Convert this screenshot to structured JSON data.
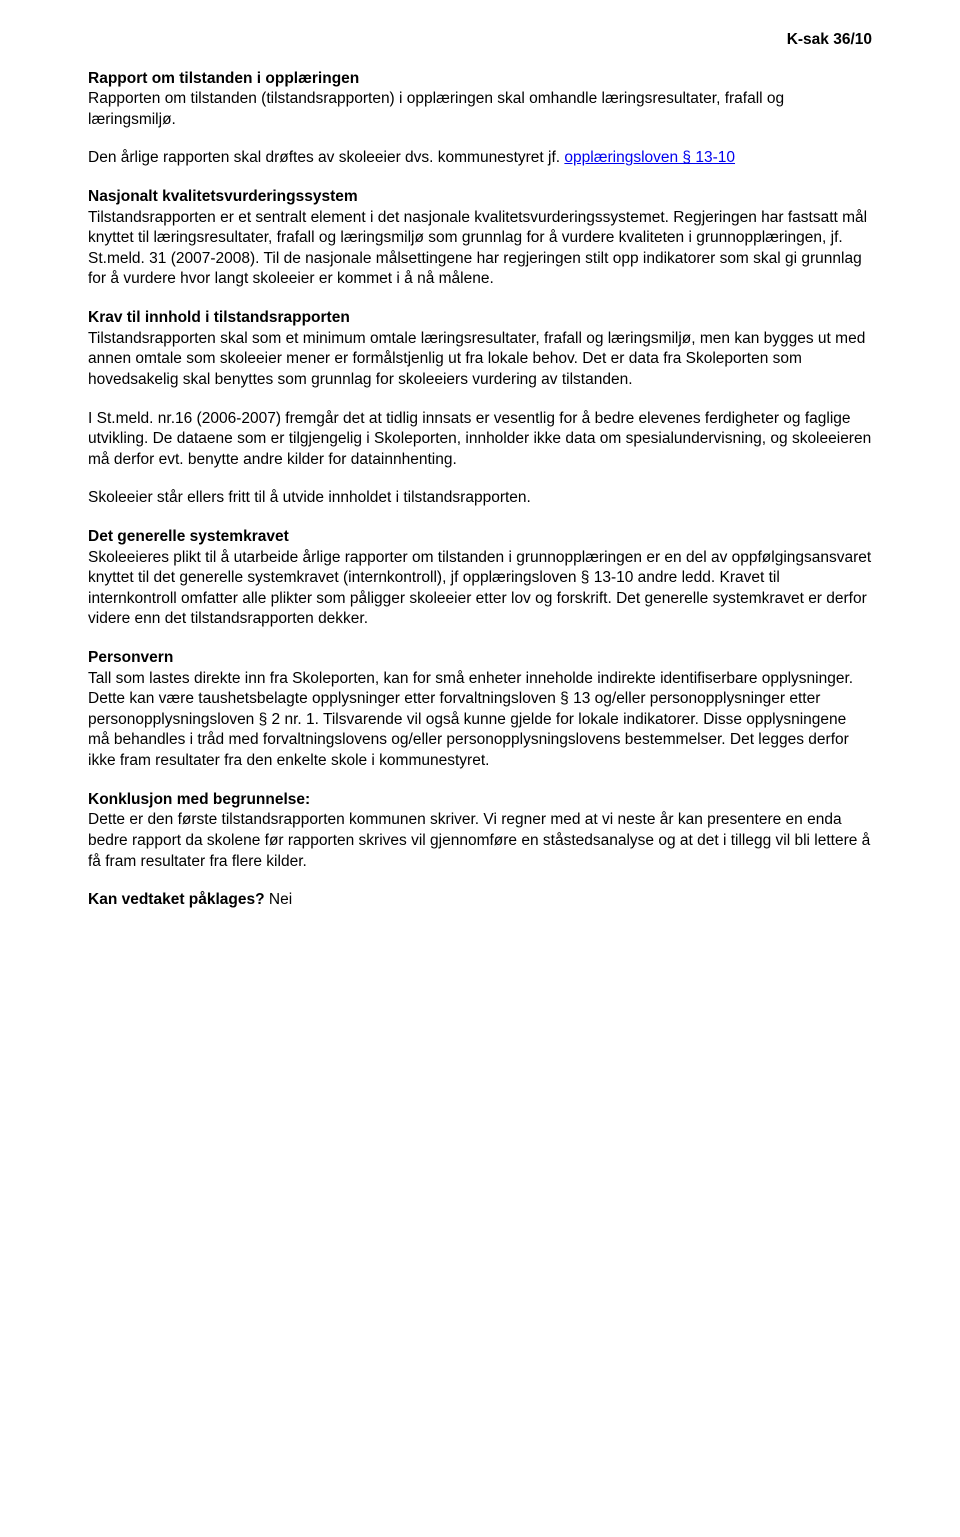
{
  "header": {
    "case_ref": "K-sak 36/10"
  },
  "s1": {
    "title": "Rapport om tilstanden i opplæringen",
    "p1": "Rapporten om tilstanden (tilstandsrapporten) i opplæringen skal omhandle læringsresultater, frafall og læringsmiljø.",
    "p2a": "Den årlige rapporten skal drøftes av skoleeier dvs. kommunestyret  jf. ",
    "p2link": "opplæringsloven § 13-10"
  },
  "s2": {
    "title": "Nasjonalt kvalitetsvurderingssystem",
    "p1": "Tilstandsrapporten er et sentralt element i det nasjonale kvalitetsvurderingssystemet. Regjeringen har fastsatt mål knyttet til læringsresultater, frafall og læringsmiljø som grunnlag for å vurdere kvaliteten i grunnopplæringen, jf. St.meld. 31 (2007-2008). Til de nasjonale målsettingene har regjeringen stilt opp indikatorer som skal gi grunnlag for å vurdere hvor langt skoleeier er kommet i å nå målene."
  },
  "s3": {
    "title": "Krav til innhold i tilstandsrapporten",
    "p1": "Tilstandsrapporten skal som et minimum omtale læringsresultater, frafall og læringsmiljø, men kan bygges ut med annen omtale som skoleeier mener er formålstjenlig ut fra lokale behov. Det er data fra Skoleporten som hovedsakelig skal benyttes som grunnlag for skoleeiers vurdering av tilstanden.",
    "p2": "I St.meld. nr.16 (2006-2007) fremgår det at tidlig innsats er vesentlig for å bedre elevenes ferdigheter og faglige utvikling. De dataene som er tilgjengelig i Skoleporten, innholder ikke data om spesialundervisning, og skoleeieren må derfor evt. benytte andre kilder for  datainnhenting.",
    "p3": "Skoleeier står ellers fritt til å utvide innholdet i tilstandsrapporten."
  },
  "s4": {
    "title": "Det generelle systemkravet",
    "p1": "Skoleeieres plikt til å utarbeide årlige rapporter om tilstanden i grunnopplæringen er en del av oppfølgingsansvaret knyttet til det generelle systemkravet (internkontroll), jf opplæringsloven § 13-10 andre ledd. Kravet til internkontroll omfatter alle plikter som påligger skoleeier etter lov og forskrift. Det generelle systemkravet er derfor videre enn det tilstandsrapporten dekker."
  },
  "s5": {
    "title": "Personvern",
    "p1": "Tall som lastes direkte inn fra Skoleporten, kan for små enheter inneholde indirekte identifiserbare opplysninger. Dette kan være taushetsbelagte opplysninger etter forvaltningsloven § 13 og/eller personopplysninger etter personopplysningsloven § 2 nr. 1. Tilsvarende vil også kunne gjelde for lokale indikatorer. Disse opplysningene må behandles i tråd med forvaltningslovens og/eller personopplysningslovens bestemmelser. Det legges derfor ikke fram resultater fra den enkelte skole i kommunestyret."
  },
  "s6": {
    "title": "Konklusjon med begrunnelse:",
    "p1": "Dette er den første tilstandsrapporten kommunen skriver. Vi regner med at vi neste år kan presentere en enda bedre rapport da skolene før rapporten skrives vil gjennomføre en ståstedsanalyse og at det i tillegg vil bli lettere å få fram resultater fra flere kilder."
  },
  "s7": {
    "title": "Kan vedtaket påklages?",
    "answer": " Nei"
  }
}
